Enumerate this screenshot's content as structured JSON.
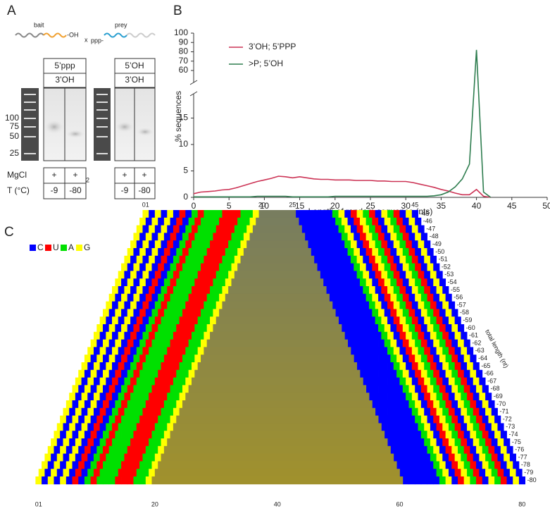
{
  "panel_a": {
    "label": "A",
    "bait": "bait",
    "prey": "prey",
    "oh_end": "-OH",
    "ppp_end": "ppp-",
    "cross": "x",
    "ladder": [
      "100",
      "75",
      "50",
      "25"
    ],
    "gels": [
      {
        "top": "5’ppp",
        "bottom": "3’OH",
        "mgcl": [
          "+",
          "+"
        ],
        "temp": [
          "-9",
          "-80"
        ]
      },
      {
        "top": "5’OH",
        "bottom": "3’OH",
        "mgcl": [
          "+",
          "+"
        ],
        "temp": [
          "-9",
          "-80"
        ]
      }
    ],
    "mgcl_label": "MgCl",
    "subscript": "2",
    "temp_label": "T (°C)"
  },
  "chart_data": {
    "type": "line",
    "panel_label": "B",
    "x": [
      0,
      1,
      2,
      3,
      4,
      5,
      6,
      7,
      8,
      9,
      10,
      11,
      12,
      13,
      14,
      15,
      16,
      17,
      18,
      19,
      20,
      21,
      22,
      23,
      24,
      25,
      26,
      27,
      28,
      29,
      30,
      31,
      32,
      33,
      34,
      35,
      36,
      37,
      38,
      39,
      40,
      41,
      42
    ],
    "series": [
      {
        "name": "3’OH; 5’PPP",
        "color": "#cc3355",
        "values": [
          0.7,
          1.0,
          1.1,
          1.2,
          1.4,
          1.5,
          1.8,
          2.2,
          2.6,
          3.0,
          3.3,
          3.6,
          4.0,
          3.9,
          3.7,
          3.9,
          3.7,
          3.5,
          3.4,
          3.4,
          3.3,
          3.3,
          3.3,
          3.2,
          3.2,
          3.2,
          3.1,
          3.1,
          3.0,
          3.0,
          3.0,
          2.8,
          2.5,
          2.2,
          1.9,
          1.5,
          1.2,
          0.8,
          0.5,
          0.5,
          1.5,
          0.2,
          0
        ]
      },
      {
        "name": ">P; 5’OH",
        "color": "#2e7d4f",
        "values": [
          0.1,
          0.1,
          0.1,
          0.1,
          0.1,
          0.1,
          0.1,
          0.1,
          0.1,
          0.2,
          0.2,
          0.2,
          0.2,
          0.2,
          0.1,
          0.1,
          0.1,
          0.1,
          0.1,
          0.1,
          0.2,
          0.2,
          0.2,
          0.2,
          0.2,
          0.2,
          0.2,
          0.2,
          0.2,
          0.2,
          0.2,
          0.2,
          0.2,
          0.2,
          0.3,
          0.5,
          1.0,
          2.0,
          3.5,
          6.3,
          82,
          1.0,
          0
        ]
      }
    ],
    "xlim": [
      0,
      50
    ],
    "xticks": [
      0,
      5,
      10,
      15,
      20,
      25,
      30,
      35,
      40,
      45,
      50
    ],
    "ylim": [
      0,
      100
    ],
    "yticks": [
      0,
      5,
      10,
      15,
      60,
      70,
      80,
      90,
      100
    ],
    "ybreak": [
      20,
      60
    ],
    "xlabel": "Length of random sequence (nts)",
    "ylabel": "% sequences",
    "legend": "upper left"
  },
  "panel_c": {
    "label": "C",
    "legend": [
      {
        "name": "C",
        "color": "#0000ff"
      },
      {
        "name": "U",
        "color": "#ff0000"
      },
      {
        "name": "A",
        "color": "#00e000"
      },
      {
        "name": "G",
        "color": "#ffff00"
      }
    ],
    "top_labels": [
      "01",
      "20",
      "25",
      "45"
    ],
    "bottom_labels": [
      "01",
      "20",
      "40",
      "60",
      "80"
    ],
    "row_labels": [
      "-45",
      "-46",
      "-47",
      "-48",
      "-49",
      "-50",
      "-51",
      "-52",
      "-53",
      "-54",
      "-55",
      "-56",
      "-57",
      "-58",
      "-59",
      "-60",
      "-61",
      "-62",
      "-63",
      "-64",
      "-65",
      "-66",
      "-67",
      "-68",
      "-69",
      "-70",
      "-71",
      "-72",
      "-73",
      "-74",
      "-75",
      "-76",
      "-77",
      "-78",
      "-79",
      "-80"
    ],
    "axis_title": "total length (nt)"
  }
}
